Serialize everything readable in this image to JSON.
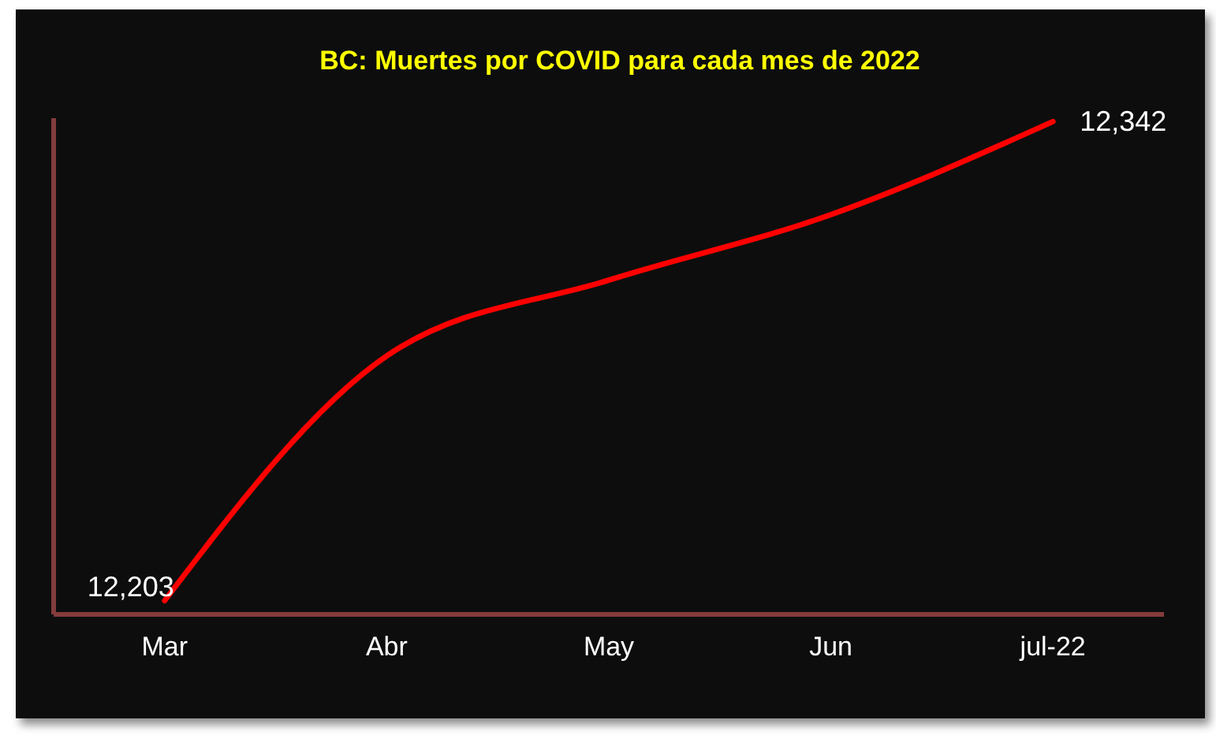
{
  "chart_data": {
    "type": "line",
    "title": "BC: Muertes por COVID para cada mes de 2022",
    "categories": [
      "Mar",
      "Abr",
      "May",
      "Jun",
      "jul-22"
    ],
    "values": [
      12203,
      12274,
      12296,
      12315,
      12342
    ],
    "value_labels": [
      "12,203",
      null,
      null,
      null,
      "12,342"
    ],
    "color": "#ff0000",
    "ylim": [
      12199,
      12343
    ]
  }
}
